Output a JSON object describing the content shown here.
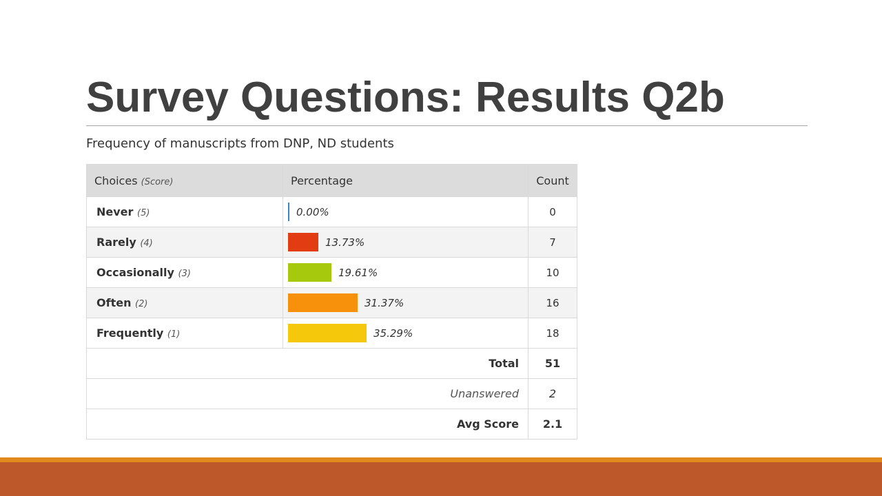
{
  "slide": {
    "title": "Survey Questions: Results Q2b"
  },
  "chart_data": {
    "type": "table",
    "question": "Frequency of manuscripts from DNP, ND students",
    "headers": {
      "choices": "Choices",
      "score": "(Score)",
      "percentage": "Percentage",
      "count": "Count"
    },
    "rows": [
      {
        "choice": "Never",
        "score": "(5)",
        "percent": 0.0,
        "percent_label": "0.00%",
        "count": "0",
        "color": "#3a87c7"
      },
      {
        "choice": "Rarely",
        "score": "(4)",
        "percent": 13.73,
        "percent_label": "13.73%",
        "count": "7",
        "color": "#e23c12"
      },
      {
        "choice": "Occasionally",
        "score": "(3)",
        "percent": 19.61,
        "percent_label": "19.61%",
        "count": "10",
        "color": "#a6c90e"
      },
      {
        "choice": "Often",
        "score": "(2)",
        "percent": 31.37,
        "percent_label": "31.37%",
        "count": "16",
        "color": "#f7900a"
      },
      {
        "choice": "Frequently",
        "score": "(1)",
        "percent": 35.29,
        "percent_label": "35.29%",
        "count": "18",
        "color": "#f6c80c"
      }
    ],
    "summary": {
      "total_label": "Total",
      "total": "51",
      "unanswered_label": "Unanswered",
      "unanswered": "2",
      "avg_label": "Avg Score",
      "avg": "2.1"
    }
  }
}
